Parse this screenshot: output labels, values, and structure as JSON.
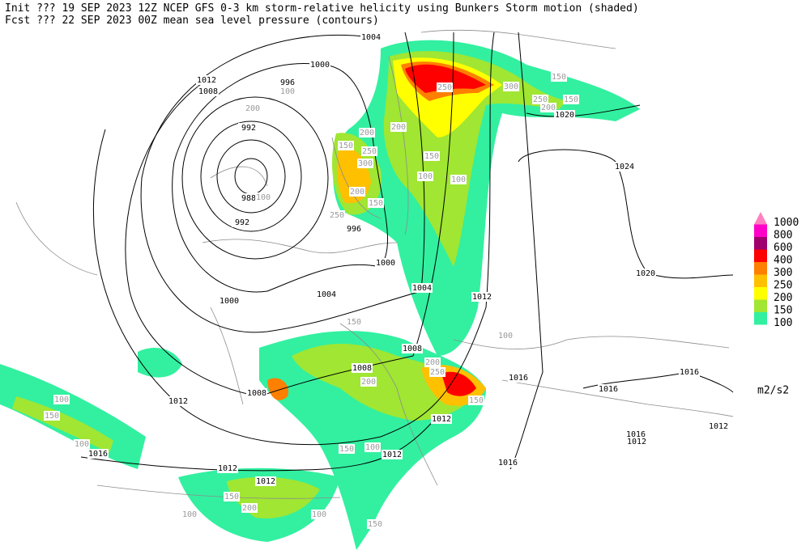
{
  "header": {
    "line1": "Init  ??? 19 SEP 2023 12Z  NCEP GFS 0-3 km storm-relative helicity using Bunkers Storm motion (shaded)",
    "line2": "Fcst ??? 22 SEP 2023 00Z  mean sea level pressure (contours)"
  },
  "legend": {
    "levels": [
      1000,
      800,
      600,
      400,
      300,
      250,
      200,
      150,
      100
    ],
    "colors": [
      "#ff80c0",
      "#ff00c8",
      "#a0006e",
      "#ff0000",
      "#ff7f00",
      "#ffc000",
      "#ffff00",
      "#a0e632",
      "#32f0a0"
    ],
    "unit": "m2/s2"
  },
  "isobar_labels": [
    1004,
    1000,
    996,
    1012,
    1008,
    992,
    988,
    992,
    996,
    1000,
    1004,
    1012,
    1000,
    1004,
    1020,
    1024,
    1020,
    1008,
    1008,
    1008,
    1012,
    1016,
    1012,
    1012,
    1012,
    1012,
    1016,
    1016,
    1016,
    1016,
    1016,
    1012,
    1012
  ],
  "helicity_labels": [
    250,
    300,
    150,
    150,
    250,
    200,
    200,
    200,
    250,
    300,
    200,
    250,
    150,
    100,
    150,
    100,
    150,
    150,
    200,
    250,
    200,
    150,
    150,
    200,
    100,
    100,
    150,
    100,
    150,
    100,
    100,
    100,
    200,
    150,
    100,
    100
  ]
}
